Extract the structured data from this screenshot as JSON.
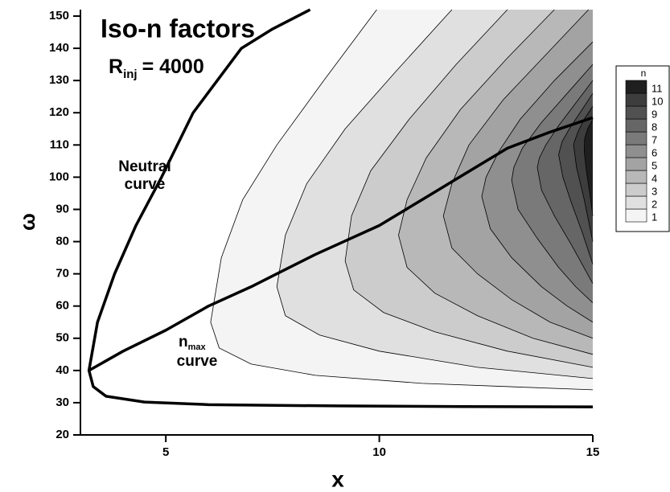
{
  "chart_data": {
    "type": "contour",
    "title": "Iso-n factors",
    "r_inj": {
      "base": "R",
      "sub": "inj",
      "rest": "= 4000"
    },
    "neutral_label": [
      "Neutral",
      "curve"
    ],
    "nmax_label": {
      "base": "n",
      "sub": "max",
      "rest": "curve"
    },
    "xlabel": "x",
    "ylabel": "ω",
    "xlim": [
      3,
      15
    ],
    "ylim": [
      20,
      152
    ],
    "xticks": [
      5,
      10,
      15
    ],
    "yticks": [
      20,
      30,
      40,
      50,
      60,
      70,
      80,
      90,
      100,
      110,
      120,
      130,
      140,
      150
    ],
    "legend_title": "n",
    "levels": [
      1,
      2,
      3,
      4,
      5,
      6,
      7,
      8,
      9,
      10,
      11
    ],
    "colors": [
      "#f4f4f4",
      "#e0e0e0",
      "#cccccc",
      "#b8b8b8",
      "#a3a3a3",
      "#8f8f8f",
      "#7a7a7a",
      "#666666",
      "#515151",
      "#3d3d3d",
      "#1f1f1f"
    ],
    "contours": [
      {
        "x": [
          9.94,
          8.7,
          7.6,
          6.8,
          6.3,
          6.05,
          6.25,
          7.0,
          8.5,
          11,
          15
        ],
        "y": [
          152,
          130,
          110,
          93,
          75,
          55,
          47,
          42,
          38.5,
          36,
          34
        ]
      },
      {
        "x": [
          11.7,
          10.4,
          9.2,
          8.3,
          7.8,
          7.6,
          7.8,
          8.6,
          10,
          12.3,
          15
        ],
        "y": [
          152,
          133,
          115,
          98,
          82,
          66,
          57,
          51,
          46,
          41,
          37.5
        ]
      },
      {
        "x": [
          13.0,
          11.8,
          10.7,
          9.8,
          9.35,
          9.2,
          9.4,
          10.1,
          11.3,
          13,
          15
        ],
        "y": [
          152,
          135,
          118,
          102,
          88,
          74,
          65,
          58,
          52,
          46,
          41
        ]
      },
      {
        "x": [
          14.1,
          13.0,
          11.9,
          11.1,
          10.65,
          10.45,
          10.65,
          11.3,
          12.3,
          13.6,
          15
        ],
        "y": [
          152,
          137,
          121,
          106,
          93,
          82,
          72,
          64,
          57,
          50,
          45
        ]
      },
      {
        "x": [
          14.9,
          13.9,
          12.9,
          12.1,
          11.7,
          11.5,
          11.7,
          12.3,
          13.1,
          14,
          15
        ],
        "y": [
          152,
          138,
          124,
          110,
          98,
          88,
          78,
          70,
          62,
          55,
          50
        ]
      },
      {
        "x": [
          15,
          14.1,
          13.3,
          12.8,
          12.5,
          12.4,
          12.6,
          13.1,
          13.8,
          14.4,
          15
        ],
        "y": [
          142,
          130,
          118,
          108,
          100,
          94,
          84,
          75,
          66,
          60,
          55
        ]
      },
      {
        "x": [
          15,
          14.4,
          13.8,
          13.35,
          13.15,
          13.1,
          13.25,
          13.7,
          14.2,
          14.6,
          15
        ],
        "y": [
          135,
          126,
          117,
          109,
          103,
          99,
          90,
          81,
          72,
          66,
          61
        ]
      },
      {
        "x": [
          15,
          14.6,
          14.2,
          13.9,
          13.75,
          13.7,
          13.8,
          14.1,
          14.5,
          15
        ],
        "y": [
          130,
          123,
          116,
          110,
          106,
          103,
          96,
          88,
          79,
          67
        ]
      },
      {
        "x": [
          15,
          14.7,
          14.45,
          14.28,
          14.2,
          14.3,
          14.5,
          14.75,
          15
        ],
        "y": [
          126,
          120,
          115,
          111,
          107,
          100,
          92,
          83,
          73
        ]
      },
      {
        "x": [
          15,
          14.8,
          14.65,
          14.57,
          14.55,
          14.62,
          14.8,
          15
        ],
        "y": [
          122,
          118,
          114,
          111,
          110,
          103,
          93,
          80
        ]
      },
      {
        "x": [
          15,
          14.88,
          14.81,
          14.8,
          14.85,
          14.93,
          15
        ],
        "y": [
          118,
          115,
          112,
          108,
          102,
          95,
          88
        ]
      }
    ],
    "series": [
      {
        "color": "#000000",
        "x": [
          8.38,
          7.5,
          6.77,
          5.64,
          4.9,
          4.3,
          3.8,
          3.4,
          3.2,
          3.3,
          3.6,
          4.5,
          6,
          9,
          12,
          15
        ],
        "y": [
          152,
          146,
          140,
          120,
          100,
          85,
          70,
          55,
          40,
          35,
          32,
          30.2,
          29.4,
          29,
          28.8,
          28.7
        ]
      },
      {
        "color": "#000000",
        "x": [
          3.2,
          4,
          5,
          6,
          7,
          7.6,
          8.5,
          9,
          10,
          11,
          12,
          13,
          14,
          15
        ],
        "y": [
          40,
          46,
          52.5,
          60,
          66,
          70,
          76,
          79,
          85,
          93,
          101,
          109,
          114,
          118.5
        ]
      }
    ]
  }
}
